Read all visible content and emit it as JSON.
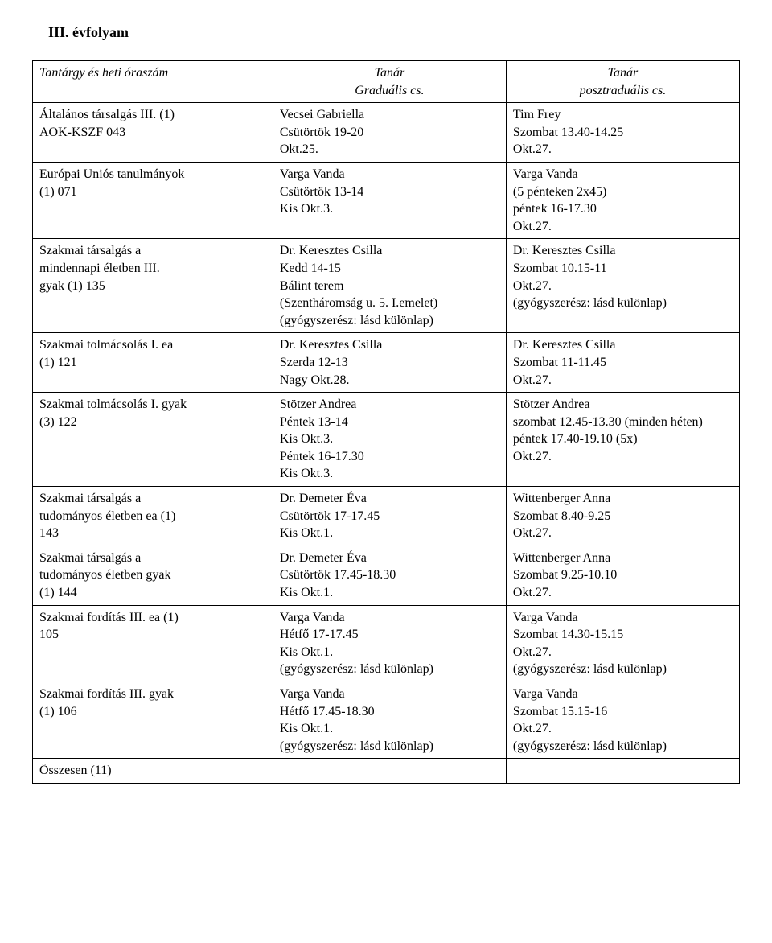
{
  "title": "III. évfolyam",
  "headers": {
    "col0": "Tantárgy és heti óraszám",
    "col1a": "Tanár",
    "col1b": "Graduális cs.",
    "col2a": "Tanár",
    "col2b": "posztraduális cs."
  },
  "rows": [
    {
      "c0": [
        "Általános társalgás III. (1)",
        "AOK-KSZF 043"
      ],
      "c1": [
        "Vecsei Gabriella",
        "Csütörtök 19-20",
        "Okt.25."
      ],
      "c2": [
        "Tim Frey",
        "Szombat 13.40-14.25",
        "Okt.27."
      ]
    },
    {
      "c0": [
        "Európai Uniós tanulmányok",
        "(1) 071"
      ],
      "c1": [
        "Varga Vanda",
        "Csütörtök 13-14",
        "Kis Okt.3."
      ],
      "c2": [
        "Varga Vanda",
        "(5 pénteken 2x45)",
        "péntek 16-17.30",
        "Okt.27."
      ]
    },
    {
      "c0": [
        "Szakmai társalgás a",
        "mindennapi életben III.",
        "gyak (1) 135"
      ],
      "c1": [
        "Dr. Keresztes Csilla",
        "Kedd 14-15",
        "Bálint terem",
        "(Szentháromság u. 5. I.emelet)",
        "(gyógyszerész: lásd különlap)"
      ],
      "c2": [
        "Dr. Keresztes Csilla",
        "Szombat 10.15-11",
        "Okt.27.",
        "(gyógyszerész: lásd különlap)"
      ]
    },
    {
      "c0": [
        "Szakmai tolmácsolás I. ea",
        "(1) 121"
      ],
      "c1": [
        "Dr. Keresztes Csilla",
        "Szerda 12-13",
        "Nagy Okt.28."
      ],
      "c2": [
        "Dr. Keresztes Csilla",
        "Szombat 11-11.45",
        "Okt.27."
      ]
    },
    {
      "c0": [
        "Szakmai tolmácsolás I. gyak",
        "(3) 122"
      ],
      "c1": [
        "Stötzer Andrea",
        "Péntek 13-14",
        "Kis Okt.3.",
        "Péntek 16-17.30",
        "Kis Okt.3."
      ],
      "c2": [
        "Stötzer Andrea",
        "szombat 12.45-13.30 (minden héten)",
        "péntek 17.40-19.10 (5x)",
        "Okt.27."
      ]
    },
    {
      "c0": [
        "Szakmai társalgás a",
        "tudományos életben ea (1)",
        "143"
      ],
      "c1": [
        "Dr. Demeter Éva",
        "Csütörtök 17-17.45",
        "Kis Okt.1."
      ],
      "c2": [
        "Wittenberger Anna",
        "Szombat 8.40-9.25",
        "Okt.27."
      ]
    },
    {
      "c0": [
        "Szakmai társalgás a",
        "tudományos életben gyak",
        "(1) 144"
      ],
      "c1": [
        "Dr. Demeter Éva",
        "Csütörtök 17.45-18.30",
        "Kis Okt.1."
      ],
      "c2": [
        "Wittenberger Anna",
        "Szombat 9.25-10.10",
        "Okt.27."
      ]
    },
    {
      "c0": [
        "Szakmai fordítás III. ea (1)",
        "105"
      ],
      "c1": [
        "Varga Vanda",
        "Hétfő 17-17.45",
        "Kis Okt.1.",
        "(gyógyszerész: lásd különlap)"
      ],
      "c2": [
        "Varga Vanda",
        "Szombat 14.30-15.15",
        "Okt.27.",
        "(gyógyszerész: lásd különlap)"
      ]
    },
    {
      "c0": [
        "Szakmai fordítás III. gyak",
        "(1) 106"
      ],
      "c1": [
        "Varga Vanda",
        "Hétfő 17.45-18.30",
        "Kis Okt.1.",
        "(gyógyszerész: lásd különlap)"
      ],
      "c2": [
        "Varga Vanda",
        "Szombat 15.15-16",
        "Okt.27.",
        "(gyógyszerész: lásd különlap)"
      ]
    },
    {
      "c0": [
        "Összesen (11)"
      ],
      "c1": [
        ""
      ],
      "c2": [
        ""
      ]
    }
  ]
}
